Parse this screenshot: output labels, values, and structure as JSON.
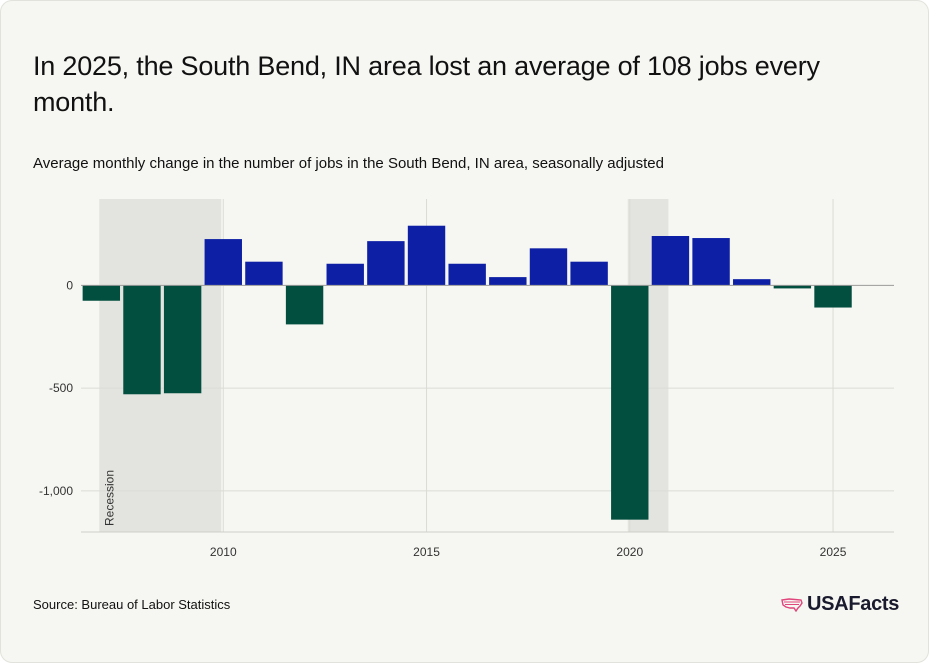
{
  "title": "In 2025, the South Bend, IN area lost an average of 108 jobs every month.",
  "subtitle": "Average monthly change in the number of jobs in the South Bend, IN area, seasonally adjusted",
  "source": "Source: Bureau of Labor Statistics",
  "logo": "USAFacts",
  "chart_data": {
    "type": "bar",
    "x": [
      2007,
      2008,
      2009,
      2010,
      2011,
      2012,
      2013,
      2014,
      2015,
      2016,
      2017,
      2018,
      2019,
      2020,
      2021,
      2022,
      2023,
      2024,
      2025
    ],
    "values": [
      -75,
      -530,
      -525,
      225,
      115,
      -190,
      105,
      215,
      290,
      105,
      40,
      180,
      115,
      -1140,
      240,
      230,
      30,
      -15,
      -108
    ],
    "xticks": [
      2010,
      2015,
      2020,
      2025
    ],
    "xtick_labels": [
      "2010",
      "2015",
      "2020",
      "2025"
    ],
    "yticks": [
      0,
      -500,
      -1000
    ],
    "ytick_labels": [
      "0",
      "-500",
      "-1,000"
    ],
    "ylim": [
      -1200,
      420
    ],
    "xlim": [
      2006.5,
      2026.5
    ],
    "recessions": [
      {
        "start": 2006.95,
        "end": 2009.95,
        "label": "Recession"
      },
      {
        "start": 2019.95,
        "end": 2020.95,
        "label": ""
      }
    ],
    "colors": {
      "positive": "#0c1fa5",
      "negative": "#034f3f",
      "recession": "#e3e3df",
      "grid": "#dcdcd6",
      "axis": "#9a9a9a"
    },
    "grid": true,
    "legend": "none"
  }
}
